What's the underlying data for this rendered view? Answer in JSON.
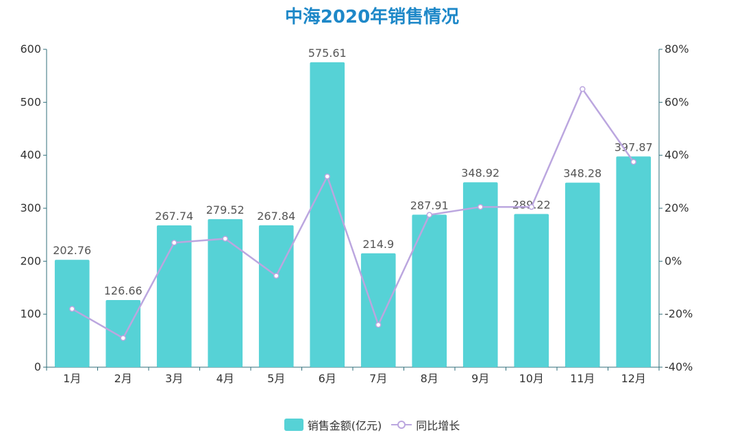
{
  "chart_data": {
    "type": "bar",
    "title": "中海2020年销售情况",
    "categories": [
      "1月",
      "2月",
      "3月",
      "4月",
      "5月",
      "6月",
      "7月",
      "8月",
      "9月",
      "10月",
      "11月",
      "12月"
    ],
    "series": [
      {
        "name": "销售金额(亿元)",
        "type": "bar",
        "axis": "left",
        "color": "#56d2d6",
        "values": [
          202.76,
          126.66,
          267.74,
          279.52,
          267.84,
          575.61,
          214.9,
          287.91,
          348.92,
          289.22,
          348.28,
          397.87
        ],
        "labels": [
          "202.76",
          "126.66",
          "267.74",
          "279.52",
          "267.84",
          "575.61",
          "214.9",
          "287.91",
          "348.92",
          "289.22",
          "348.28",
          "397.87"
        ]
      },
      {
        "name": "同比增长",
        "type": "line",
        "axis": "right",
        "color": "#bba6df",
        "unit": "%",
        "values": [
          -18,
          -29,
          7,
          8.5,
          -5.5,
          32,
          -24,
          17.5,
          20.5,
          20.5,
          65,
          37.5
        ]
      }
    ],
    "y_left": {
      "min": 0,
      "max": 600,
      "ticks": [
        0,
        100,
        200,
        300,
        400,
        500,
        600
      ],
      "tick_labels": [
        "0",
        "100",
        "200",
        "300",
        "400",
        "500",
        "600"
      ]
    },
    "y_right": {
      "min": -40,
      "max": 80,
      "ticks": [
        -40,
        -20,
        0,
        20,
        40,
        60,
        80
      ],
      "tick_labels": [
        "-40%",
        "-20%",
        "0%",
        "20%",
        "40%",
        "60%",
        "80%"
      ]
    },
    "legend_position": "bottom-center",
    "grid": false,
    "colors": {
      "title": "#1e88c8",
      "axis_line": "#2f6e7a",
      "bar": "#56d2d6",
      "line": "#bba6df"
    }
  }
}
